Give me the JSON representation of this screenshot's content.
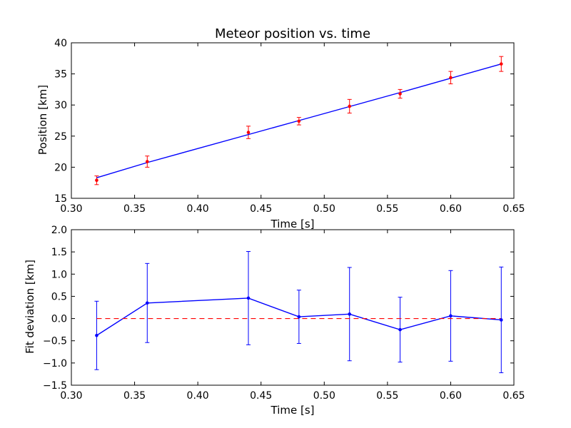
{
  "chart_data": [
    {
      "type": "scatter",
      "title": "Meteor position vs. time",
      "xlabel": "Time [s]",
      "ylabel": "Position [km]",
      "xlim": [
        0.3,
        0.65
      ],
      "ylim": [
        15,
        40
      ],
      "xticks": [
        "0.30",
        "0.35",
        "0.40",
        "0.45",
        "0.50",
        "0.55",
        "0.60",
        "0.65"
      ],
      "yticks": [
        "15",
        "20",
        "25",
        "30",
        "35",
        "40"
      ],
      "grid": false,
      "series": [
        {
          "kind": "points-with-errorbars",
          "color": "#ff0000",
          "x": [
            0.32,
            0.36,
            0.44,
            0.48,
            0.52,
            0.56,
            0.6,
            0.64
          ],
          "y": [
            17.9,
            20.9,
            25.6,
            27.4,
            29.8,
            31.8,
            34.4,
            36.6
          ],
          "yerr": [
            0.7,
            0.9,
            1.0,
            0.6,
            1.1,
            0.7,
            1.0,
            1.2
          ]
        },
        {
          "kind": "line",
          "color": "#0000ff",
          "x": [
            0.32,
            0.36,
            0.44,
            0.48,
            0.52,
            0.56,
            0.6,
            0.64
          ],
          "y": [
            18.3,
            20.75,
            25.25,
            27.5,
            29.75,
            32.0,
            34.3,
            36.6
          ]
        }
      ]
    },
    {
      "type": "line",
      "xlabel": "Time [s]",
      "ylabel": "Fit deviation [km]",
      "xlim": [
        0.3,
        0.65
      ],
      "ylim": [
        -1.5,
        2.0
      ],
      "xticks": [
        "0.30",
        "0.35",
        "0.40",
        "0.45",
        "0.50",
        "0.55",
        "0.60",
        "0.65"
      ],
      "yticks": [
        "−1.5",
        "−1.0",
        "−0.5",
        "0.0",
        "0.5",
        "1.0",
        "1.5",
        "2.0"
      ],
      "grid": false,
      "series": [
        {
          "kind": "line-with-errorbars",
          "color": "#0000ff",
          "x": [
            0.32,
            0.36,
            0.44,
            0.48,
            0.52,
            0.56,
            0.6,
            0.64
          ],
          "y": [
            -0.38,
            0.35,
            0.46,
            0.04,
            0.1,
            -0.25,
            0.06,
            -0.03
          ],
          "yerr": [
            0.77,
            0.89,
            1.05,
            0.6,
            1.05,
            0.73,
            1.02,
            1.19
          ]
        },
        {
          "kind": "reference-line",
          "color": "#ff0000",
          "style": "dashed",
          "x": [
            0.32,
            0.64
          ],
          "y": [
            0.0,
            0.0
          ]
        }
      ]
    }
  ]
}
